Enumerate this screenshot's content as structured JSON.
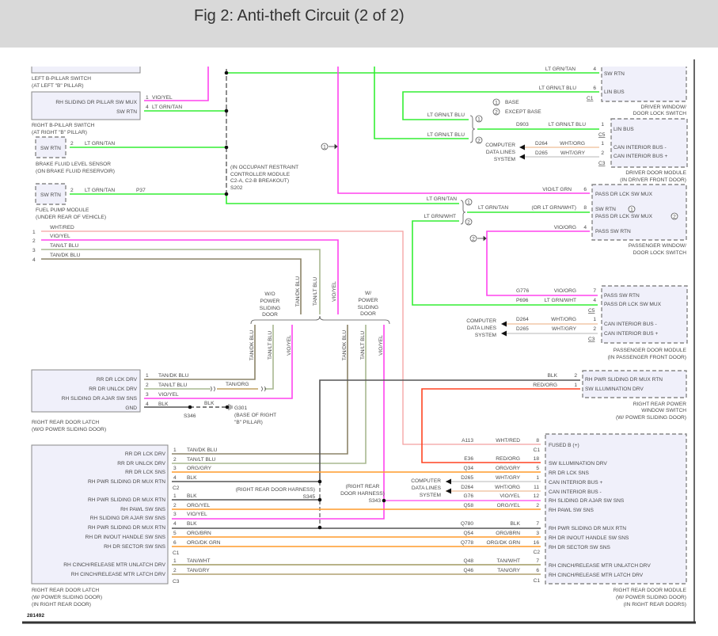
{
  "header": {
    "title": "Fig 2: Anti-theft Circuit (2 of 2)"
  },
  "colors": {
    "lt_grn": "#33ee33",
    "vio": "#ff44ee",
    "wht_red": "#f4a0a0",
    "tan_dk_blu": "#8c8468",
    "tan_lt_blu": "#a8b890",
    "org": "#ff9a2a",
    "blk": "#555555",
    "red_org": "#ff4422",
    "wht_org": "#f2c9a8",
    "wht_gry": "#cfcfcf",
    "tan_wht": "#a09a60",
    "tan_gry": "#b0a070",
    "tan_org": "#c0a060",
    "box_fill": "#f0f0fa",
    "box_border": "#888888"
  },
  "option_marks": [
    "1",
    "2"
  ],
  "legend": {
    "items": [
      {
        "num": "1",
        "label": "BASE"
      },
      {
        "num": "2",
        "label": "EXCEPT BASE"
      }
    ]
  },
  "cdl": [
    "COMPUTER",
    "DATA LINES",
    "SYSTEM"
  ],
  "lb": {
    "name": "LEFT B-PILLAR SWITCH",
    "loc": "(AT LEFT \"B\" PILLAR)"
  },
  "rb": {
    "pins": [
      "RH SLIDING DR PILLAR SW MUX",
      "SW RTN"
    ],
    "pin_nums": [
      "1",
      "4"
    ],
    "wires": [
      "VIO/YEL",
      "LT GRN/TAN"
    ],
    "name": "RIGHT B-PILLAR SWITCH",
    "loc": "(AT RIGHT \"B\" PILLAR)"
  },
  "bf": {
    "pin": "SW RTN",
    "pin_num": "2",
    "wire": "LT GRN/TAN",
    "name": "BRAKE FLUID LEVEL SENSOR",
    "loc": "(ON BRAKE FLUID RESERVOIR)"
  },
  "fp": {
    "pin": "SW RTN",
    "pin_num": "2",
    "wire": "LT GRN/TAN",
    "circuit": "P37",
    "name": "FUEL PUMP MODULE",
    "loc": "(UNDER REAR OF VEHICLE)"
  },
  "s202": {
    "note": [
      "(IN OCCUPANT RESTRAINT",
      "CONTROLLER MODULE",
      "C2-A, C2-B BREAKOUT)",
      "S202"
    ]
  },
  "bus": {
    "nums": [
      "1",
      "2",
      "3",
      "4"
    ],
    "wires": [
      "WHT/RED",
      "VIO/YEL",
      "TAN/LT BLU",
      "TAN/DK BLU"
    ]
  },
  "dws": {
    "pins": [
      "SW RTN",
      "LIN BUS"
    ],
    "pin_nums": [
      "4",
      "6"
    ],
    "wires": [
      "LT GRN/TAN",
      "LT GRN/LT BLU"
    ],
    "connector": "C1",
    "name": [
      "DRIVER WINDOW/",
      "DOOR LOCK SWITCH"
    ]
  },
  "opt1": {
    "wires": [
      "LT GRN/LT BLU",
      "LT GRN/LT BLU"
    ]
  },
  "ddm": {
    "pins": [
      "LIN BUS",
      "CAN INTERIOR BUS -",
      "CAN INTERIOR BUS +"
    ],
    "pin_nums": [
      "1",
      "1",
      "2"
    ],
    "circuits": [
      "D903",
      "D264",
      "D265"
    ],
    "wires": [
      "LT GRN/LT BLU",
      "WHT/ORG",
      "WHT/GRY"
    ],
    "connectors": [
      "C5",
      "C3"
    ],
    "name": [
      "DRIVER DOOR MODULE",
      "(IN DRIVER FRONT DOOR)"
    ]
  },
  "pws": {
    "pins": [
      "PASS DR LCK SW MUX",
      "SW RTN",
      "PASS DR LCK SW MUX",
      "PASS SW RTN"
    ],
    "pin_nums": [
      "6",
      "8",
      "4"
    ],
    "wires": [
      "VIO/LT GRN",
      "LT GRN/TAN",
      "(OR LT GRN/WHT)",
      "VIO/ORG"
    ],
    "inputs": [
      "LT GRN/TAN",
      "LT GRN/WHT"
    ],
    "name": [
      "PASSENGER WINDOW/",
      "DOOR LOCK SWITCH"
    ]
  },
  "pdm": {
    "pins": [
      "PASS SW RTN",
      "PASS DR LCK SW MUX",
      "CAN INTERIOR BUS -",
      "CAN INTERIOR BUS +"
    ],
    "pin_nums": [
      "7",
      "4",
      "1",
      "2"
    ],
    "circuits": [
      "G776",
      "P696",
      "D264",
      "D265"
    ],
    "wires": [
      "VIO/ORG",
      "LT GRN/WHT",
      "WHT/ORG",
      "WHT/GRY"
    ],
    "connectors": [
      "C5",
      "C3"
    ],
    "name": [
      "PASSENGER DOOR MODULE",
      "(IN PASSENGER FRONT DOOR)"
    ]
  },
  "variants": {
    "without": [
      "W/O",
      "POWER",
      "SLIDING",
      "DOOR"
    ],
    "with": [
      "W/",
      "POWER",
      "SLIDING",
      "DOOR"
    ],
    "wires": [
      "TAN/DK BLU",
      "TAN/LT BLU",
      "VIO/YEL"
    ]
  },
  "rlo": {
    "pins": [
      "RR DR LCK DRV",
      "RR DR UNLCK DRV",
      "RH SLIDING DR AJAR SW SNS",
      "GND"
    ],
    "pin_nums": [
      "1",
      "2",
      "3",
      "4"
    ],
    "wires": [
      "TAN/DK BLU",
      "TAN/LT BLU",
      "VIO/YEL",
      "BLK"
    ],
    "inline_wire": "TAN/ORG",
    "ground_wire": "BLK",
    "splice": "S346",
    "ground": "G301",
    "ground_loc": [
      "(BASE OF RIGHT",
      "\"B\" PILLAR)"
    ],
    "name": [
      "RIGHT REAR DOOR LATCH",
      "(W/O POWER SLIDING DOOR)"
    ]
  },
  "rrws": {
    "pins": [
      "RH PWR SLIDING DR MUX RTN",
      "SW ILLUMINATION DRV"
    ],
    "pin_nums": [
      "2",
      "1"
    ],
    "wires": [
      "BLK",
      "RED/ORG"
    ],
    "name": [
      "RIGHT REAR POWER",
      "WINDOW SWITCH",
      "(W/ POWER SLIDING DOOR)"
    ]
  },
  "rlw": {
    "pins": [
      "RR DR LCK DRV",
      "RR DR UNLCK DRV",
      "RR DR LCK SNS",
      "RH PWR SLIDING DR MUX RTN",
      "RH PWR SLIDING DR MUX RTN",
      "RH PAWL SW SNS",
      "RH SLIDING DR AJAR SW SNS",
      "RH PWR SLIDING DR MUX RTN",
      "RH DR IN/OUT HANDLE SW SNS",
      "RH DR SECTOR SW SNS",
      "RH CINCH/RELEASE MTR UNLATCH DRV",
      "RH CINCH/RELEASE MTR LATCH DRV"
    ],
    "pin_nums": [
      "1",
      "2",
      "3",
      "4",
      "1",
      "2",
      "3",
      "4",
      "5",
      "6",
      "1",
      "2"
    ],
    "wires": [
      "TAN/DK BLU",
      "TAN/LT BLU",
      "ORG/GRY",
      "BLK",
      "BLK",
      "ORG/YEL",
      "VIO/YEL",
      "BLK",
      "ORG/BRN",
      "ORG/DK GRN",
      "TAN/WHT",
      "TAN/GRY"
    ],
    "connectors": [
      "C2",
      "C1",
      "C3"
    ],
    "name": [
      "RIGHT REAR DOOR LATCH",
      "(W/ POWER SLIDING DOOR)",
      "(IN RIGHT REAR DOOR)"
    ]
  },
  "harness": {
    "s345": [
      "(RIGHT REAR DOOR HARNESS)",
      "S345"
    ],
    "s343": [
      "(RIGHT REAR",
      "DOOR HARNESS)",
      "S343"
    ]
  },
  "rrm": {
    "pins": [
      "FUSED B (+)",
      "SW ILLUMINATION DRV",
      "RR DR LCK SNS",
      "CAN INTERIOR BUS +",
      "CAN INTERIOR BUS -",
      "RH SLIDING DR AJAR SW SNS",
      "RH PAWL SW SNS",
      "RH PWR SLIDING DR MUX RTN",
      "RH DR IN/OUT HANDLE SW SNS",
      "RH DR SECTOR SW SNS",
      "RH CINCH/RELEASE MTR UNLATCH DRV",
      "RH CINCH/RELEASE MTR LATCH DRV"
    ],
    "circuits": [
      "A113",
      "E36",
      "Q34",
      "D265",
      "D264",
      "G76",
      "Q58",
      "Q780",
      "Q54",
      "Q778",
      "Q48",
      "Q46"
    ],
    "wires": [
      "WHT/RED",
      "RED/ORG",
      "ORG/GRY",
      "WHT/GRY",
      "WHT/ORG",
      "VIO/YEL",
      "ORG/YEL",
      "BLK",
      "ORG/BRN",
      "ORG/DK GRN",
      "TAN/WHT",
      "TAN/GRY"
    ],
    "pin_nums": [
      "8",
      "18",
      "5",
      "1",
      "11",
      "12",
      "2",
      "7",
      "3",
      "16",
      "7",
      "6"
    ],
    "connectors": [
      "C1",
      "C2",
      "C1"
    ],
    "name": [
      "RIGHT REAR DOOR MODULE",
      "(W/ POWER SLIDING DOOR)",
      "(IN RIGHT REAR DOORS)"
    ]
  },
  "footer": {
    "id": "281492"
  }
}
